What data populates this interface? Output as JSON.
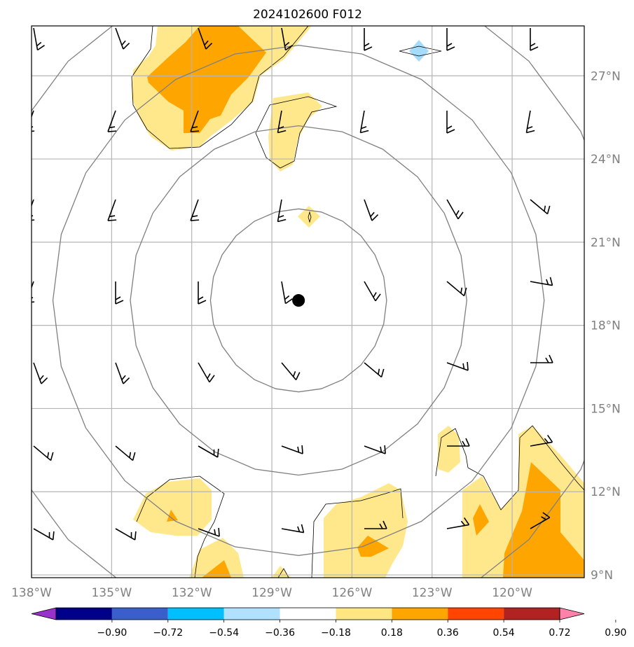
{
  "title": "2024102600 F012",
  "center_marker": {
    "lon": -128.0,
    "lat": 18.9
  },
  "map": {
    "lon_range": [
      -138,
      -117.3
    ],
    "lat_range": [
      8.9,
      28.8
    ],
    "lon_ticks": [
      {
        "value": -138,
        "label": "138°W"
      },
      {
        "value": -135,
        "label": "135°W"
      },
      {
        "value": -132,
        "label": "132°W"
      },
      {
        "value": -129,
        "label": "129°W"
      },
      {
        "value": -126,
        "label": "126°W"
      },
      {
        "value": -123,
        "label": "123°W"
      },
      {
        "value": -120,
        "label": "120°W"
      }
    ],
    "lat_ticks": [
      {
        "value": 9,
        "label": "9°N"
      },
      {
        "value": 12,
        "label": "12°N"
      },
      {
        "value": 15,
        "label": "15°N"
      },
      {
        "value": 18,
        "label": "18°N"
      },
      {
        "value": 21,
        "label": "21°N"
      },
      {
        "value": 24,
        "label": "24°N"
      },
      {
        "value": 27,
        "label": "27°N"
      }
    ],
    "range_rings_deg": [
      3.3,
      6.3,
      9.2,
      12.2
    ]
  },
  "colorbar": {
    "tick_labels": [
      "−0.90",
      "−0.72",
      "−0.54",
      "−0.36",
      "−0.18",
      "0.18",
      "0.36",
      "0.54",
      "0.72",
      "0.90"
    ],
    "colors": [
      "#9932cc",
      "#00008b",
      "#3a5fcd",
      "#00bfff",
      "#b0e2ff",
      "#ffffff",
      "#ffe680",
      "#ffa500",
      "#ff4500",
      "#b22222",
      "#ff82ab"
    ]
  },
  "colors": {
    "light_yellow": "#ffe88c",
    "orange": "#ffa500",
    "light_blue": "#a6dcfa",
    "ring": "#808080",
    "grid": "#b4b4b4",
    "barb": "#000000"
  }
}
